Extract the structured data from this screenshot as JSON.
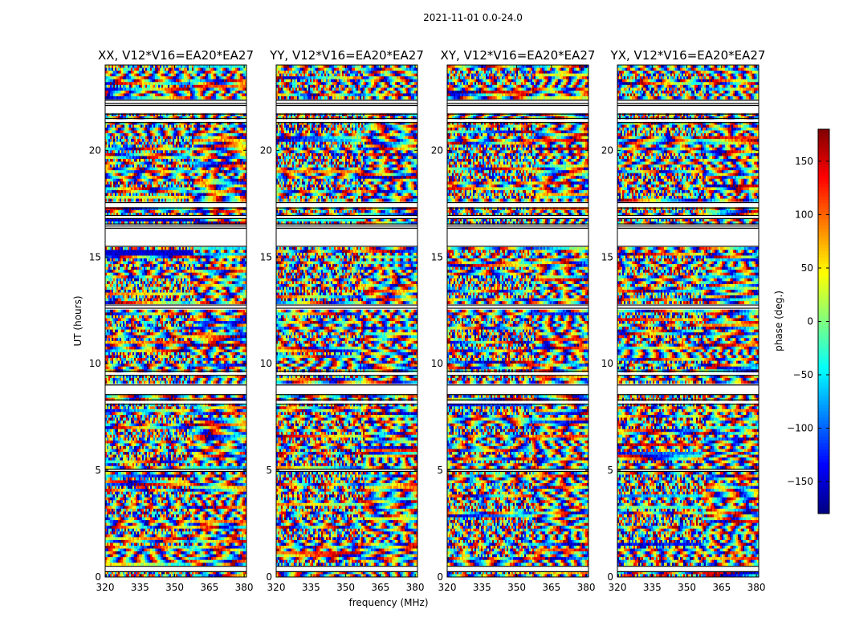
{
  "chart_data": {
    "type": "heatmap",
    "suptitle": "2021-11-01 0.0-24.0",
    "xlabel": "frequency (MHz)",
    "ylabel": "UT (hours)",
    "xlim": [
      320,
      381
    ],
    "ylim": [
      0,
      24
    ],
    "xticks": [
      "320",
      "335",
      "350",
      "365",
      "380"
    ],
    "xtick_values": [
      320,
      335,
      350,
      365,
      380
    ],
    "yticks": [
      "0",
      "5",
      "10",
      "15",
      "20"
    ],
    "ytick_values": [
      0,
      5,
      10,
      15,
      20
    ],
    "panels": [
      {
        "title": "XX, V12*V16=EA20*EA27",
        "pol": "XX"
      },
      {
        "title": "YY, V12*V16=EA20*EA27",
        "pol": "YY"
      },
      {
        "title": "XY, V12*V16=EA20*EA27",
        "pol": "XY"
      },
      {
        "title": "YX, V12*V16=EA20*EA27",
        "pol": "YX"
      }
    ],
    "colorbar": {
      "label": "phase (deg.)",
      "range": [
        -180,
        180
      ],
      "ticks": [
        "−150",
        "−100",
        "−50",
        "0",
        "50",
        "100",
        "150"
      ],
      "tick_values": [
        -150,
        -100,
        -50,
        0,
        50,
        100,
        150
      ],
      "colormap": "jet"
    },
    "flagged_ut_ranges": [
      [
        0.25,
        0.5
      ],
      [
        4.95,
        5.05
      ],
      [
        8.1,
        8.3
      ],
      [
        8.55,
        9.0
      ],
      [
        9.45,
        9.65
      ],
      [
        12.6,
        12.75
      ],
      [
        15.5,
        16.35
      ],
      [
        16.45,
        16.55
      ],
      [
        16.8,
        16.95
      ],
      [
        17.3,
        17.55
      ],
      [
        21.3,
        21.5
      ],
      [
        21.7,
        22.1
      ],
      [
        22.2,
        22.35
      ]
    ]
  }
}
